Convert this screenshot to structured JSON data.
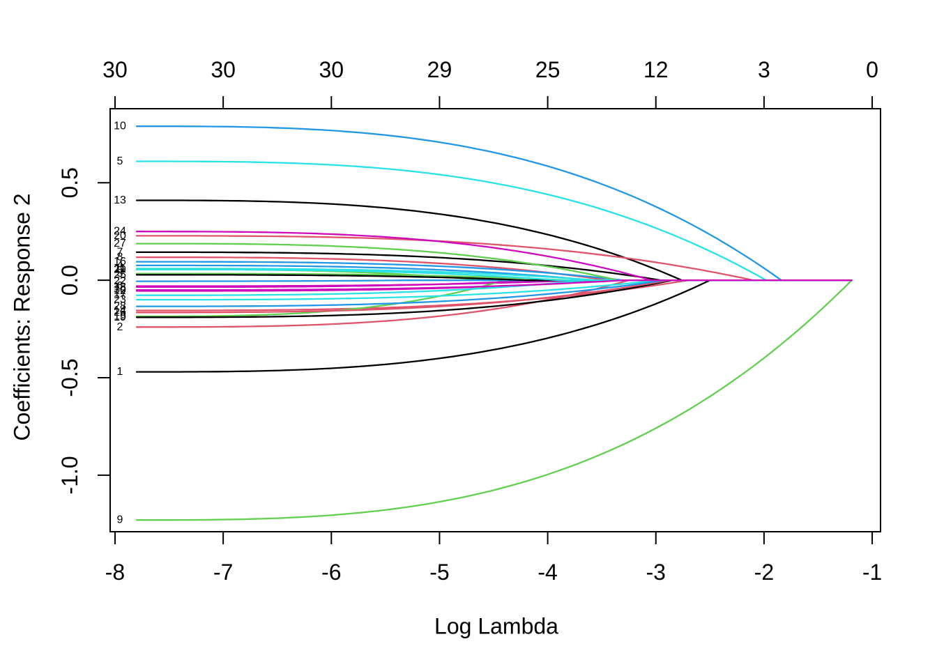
{
  "chart_data": {
    "type": "line",
    "title": "",
    "xlabel": "Log Lambda",
    "ylabel": "Coefficients: Response 2",
    "grid": false,
    "legend": "none",
    "x_axis": {
      "ticks": [
        -8,
        -7,
        -6,
        -5,
        -4,
        -3,
        -2,
        -1
      ],
      "labels": [
        "-8",
        "-7",
        "-6",
        "-5",
        "-4",
        "-3",
        "-2",
        "-1"
      ]
    },
    "y_axis": {
      "ticks": [
        0.5,
        0.0,
        -0.5,
        -1.0
      ],
      "labels": [
        "0.5",
        "0.0",
        "-0.5",
        "-1.0"
      ]
    },
    "top_axis": {
      "meaning": "number of nonzero coefficients",
      "labels": [
        "30",
        "30",
        "30",
        "29",
        "25",
        "12",
        "3",
        "0"
      ]
    },
    "xlim": [
      -8.045,
      -0.923
    ],
    "ylim": [
      -1.29,
      0.88
    ],
    "x_start": -7.8,
    "x_end": -1.19,
    "curve_shape_power": 3,
    "palette": [
      "#000000",
      "#DF536B",
      "#61D04F",
      "#2297E6",
      "#28E2E5",
      "#CD0BBC"
    ],
    "series": [
      {
        "label": "1",
        "start": -0.47,
        "zero_at": -2.5
      },
      {
        "label": "2",
        "start": -0.24,
        "zero_at": -3.25
      },
      {
        "label": "3",
        "start": 0.034,
        "zero_at": -3.8
      },
      {
        "label": "4",
        "start": 0.076,
        "zero_at": -3.6
      },
      {
        "label": "5",
        "start": 0.61,
        "zero_at": -1.98
      },
      {
        "label": "6",
        "start": -0.03,
        "zero_at": -3.7
      },
      {
        "label": "7",
        "start": 0.144,
        "zero_at": -2.95
      },
      {
        "label": "8",
        "start": 0.118,
        "zero_at": -3.45
      },
      {
        "label": "9",
        "start": -1.23,
        "zero_at": -1.19
      },
      {
        "label": "10",
        "start": 0.79,
        "zero_at": -1.84
      },
      {
        "label": "11",
        "start": 0.06,
        "zero_at": -3.55
      },
      {
        "label": "12",
        "start": -0.055,
        "zero_at": -3.4
      },
      {
        "label": "13",
        "start": 0.41,
        "zero_at": -2.76
      },
      {
        "label": "14",
        "start": -0.155,
        "zero_at": -2.7
      },
      {
        "label": "15",
        "start": -0.185,
        "zero_at": -4.4
      },
      {
        "label": "16",
        "start": 0.095,
        "zero_at": -3.3
      },
      {
        "label": "17",
        "start": -0.077,
        "zero_at": -3.65
      },
      {
        "label": "18",
        "start": -0.035,
        "zero_at": -4.05
      },
      {
        "label": "19",
        "start": -0.19,
        "zero_at": -2.85
      },
      {
        "label": "20",
        "start": 0.228,
        "zero_at": -2.1
      },
      {
        "label": "21",
        "start": 0.056,
        "zero_at": -4.6
      },
      {
        "label": "22",
        "start": -0.005,
        "zero_at": -5.3
      },
      {
        "label": "23",
        "start": -0.1,
        "zero_at": -2.98
      },
      {
        "label": "24",
        "start": 0.25,
        "zero_at": -3.04
      },
      {
        "label": "25",
        "start": 0.028,
        "zero_at": -4.2
      },
      {
        "label": "26",
        "start": -0.165,
        "zero_at": -2.88
      },
      {
        "label": "27",
        "start": 0.188,
        "zero_at": -3.35
      },
      {
        "label": "28",
        "start": -0.134,
        "zero_at": -2.92
      },
      {
        "label": "29",
        "start": 0.055,
        "zero_at": -3.9
      },
      {
        "label": "30",
        "start": -0.05,
        "zero_at": -3.3
      }
    ]
  }
}
